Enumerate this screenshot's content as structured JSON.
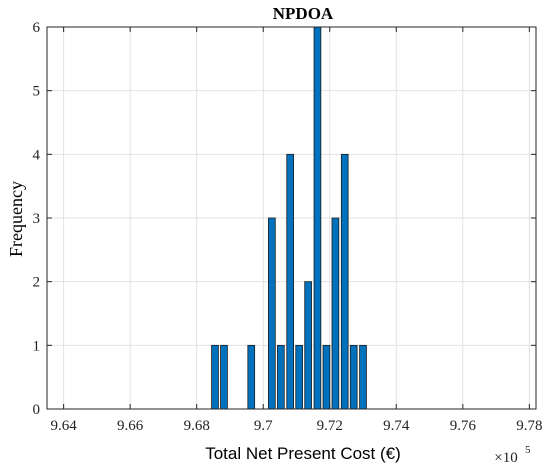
{
  "chart_data": {
    "type": "bar",
    "title": "NPDOA",
    "xlabel": "Total Net Present Cost (€)",
    "ylabel": "Frequency",
    "x_multiplier": {
      "base": "×10",
      "exponent": "5"
    },
    "xlim": [
      9.635,
      9.782
    ],
    "ylim": [
      0,
      6
    ],
    "grid": true,
    "bar_color": "#0072BD",
    "bar_edge_color": "#1a1a1a",
    "bin_width": 0.00205,
    "xticks": [
      9.64,
      9.66,
      9.68,
      9.7,
      9.72,
      9.74,
      9.76,
      9.78
    ],
    "xtick_labels": [
      "9.64",
      "9.66",
      "9.68",
      "9.7",
      "9.72",
      "9.74",
      "9.76",
      "9.78"
    ],
    "yticks": [
      0,
      1,
      2,
      3,
      4,
      5,
      6
    ],
    "ytick_labels": [
      "0",
      "1",
      "2",
      "3",
      "4",
      "5",
      "6"
    ],
    "bins": [
      {
        "x": 9.6855,
        "y": 1
      },
      {
        "x": 9.6882,
        "y": 1
      },
      {
        "x": 9.6964,
        "y": 1
      },
      {
        "x": 9.7026,
        "y": 3
      },
      {
        "x": 9.7053,
        "y": 1
      },
      {
        "x": 9.7081,
        "y": 4
      },
      {
        "x": 9.7108,
        "y": 1
      },
      {
        "x": 9.7135,
        "y": 2
      },
      {
        "x": 9.7163,
        "y": 6
      },
      {
        "x": 9.719,
        "y": 1
      },
      {
        "x": 9.7217,
        "y": 3
      },
      {
        "x": 9.7245,
        "y": 4
      },
      {
        "x": 9.7272,
        "y": 1
      },
      {
        "x": 9.73,
        "y": 1
      }
    ]
  }
}
